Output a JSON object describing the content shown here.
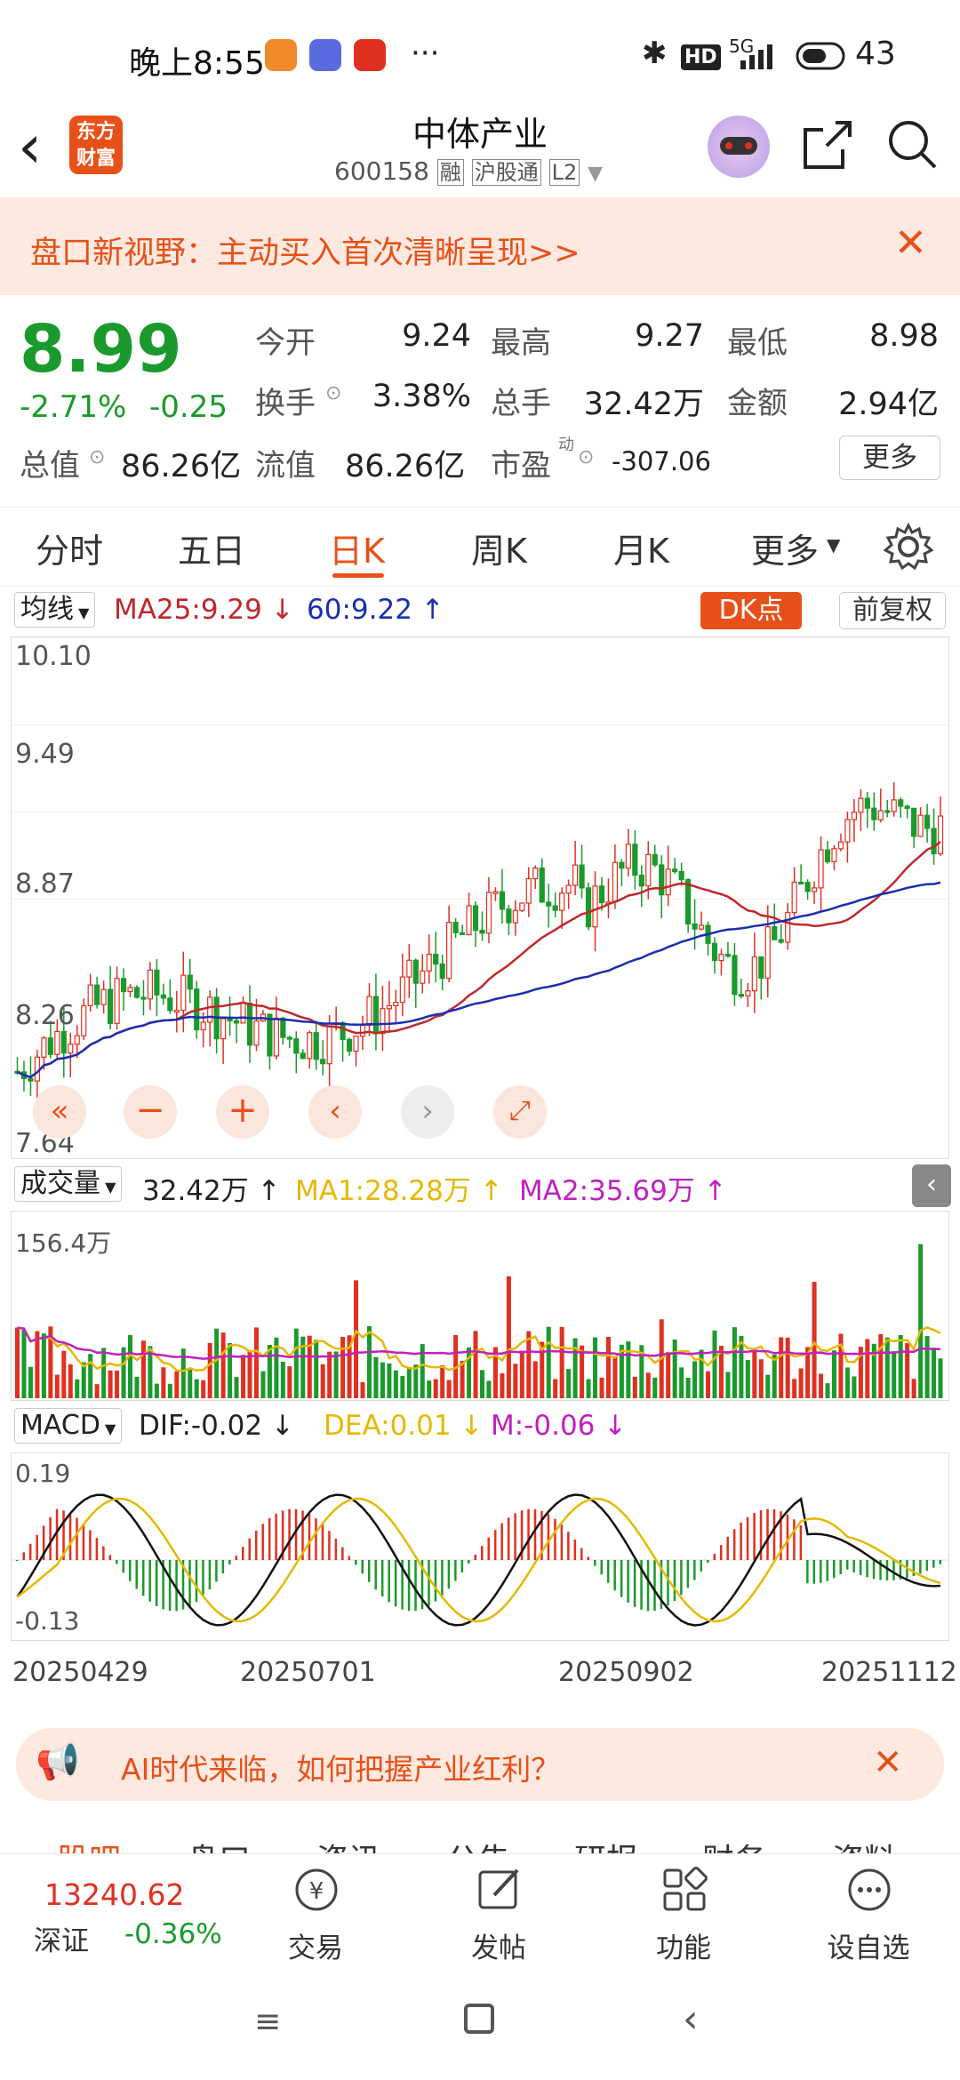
{
  "status": {
    "time": "晚上8:55",
    "more": "···",
    "network": "5G",
    "hd": "HD",
    "battery": "43"
  },
  "header": {
    "back_label": "‹",
    "brand_line1": "东方",
    "brand_line2": "财富",
    "title": "中体产业",
    "code": "600158",
    "tag1": "融",
    "tag2": "沪股通",
    "tag3": "L2"
  },
  "banner": {
    "text": "盘口新视野：主动买入首次清晰呈现>>"
  },
  "quote": {
    "price": "8.99",
    "change_pct": "-2.71%",
    "change": "-0.25",
    "open_label": "今开",
    "open": "9.24",
    "high_label": "最高",
    "high": "9.27",
    "low_label": "最低",
    "low": "8.98",
    "turnover_label": "换手",
    "turnover": "3.38%",
    "volume_label": "总手",
    "volume": "32.42万",
    "amount_label": "金额",
    "amount": "2.94亿",
    "mktcap_label": "总值",
    "mktcap": "86.26亿",
    "float_label": "流值",
    "float": "86.26亿",
    "pe_label": "市盈",
    "pe_sup": "动",
    "pe": "-307.06",
    "more_button": "更多"
  },
  "tabs": [
    "分时",
    "五日",
    "日K",
    "周K",
    "月K",
    "更多"
  ],
  "active_tab": "日K",
  "kline": {
    "ma_selector": "均线",
    "ma25": "MA25:9.29",
    "ma60": "60:9.22",
    "dk_button": "DK点",
    "adjust_button": "前复权",
    "y_ticks": [
      "10.10",
      "9.49",
      "8.87",
      "8.26",
      "7.64"
    ]
  },
  "volume_panel": {
    "selector": "成交量",
    "vol": "32.42万",
    "ma1": "MA1:28.28万",
    "ma2": "MA2:35.69万",
    "max_label": "156.4万"
  },
  "macd_panel": {
    "selector": "MACD",
    "dif": "DIF:-0.02",
    "dea": "DEA:0.01",
    "m": "M:-0.06",
    "top_label": "0.19",
    "bottom_label": "-0.13"
  },
  "dates": [
    "20250429",
    "20250701",
    "20250902",
    "20251112"
  ],
  "promo": {
    "text": "AI时代来临，如何把握产业红利？"
  },
  "subtabs": [
    "股吧",
    "盘口",
    "资讯",
    "公告",
    "研报",
    "财务",
    "资料"
  ],
  "bottom_nav": {
    "index_value": "13240.62",
    "index_name": "深证",
    "index_change": "-0.36%",
    "items": [
      "交易",
      "发帖",
      "功能",
      "设自选"
    ]
  },
  "colors": {
    "up": "#e03020",
    "down": "#1a9a2c",
    "accent": "#e8501a",
    "ma25": "#c0282a",
    "ma60": "#1a2eb0",
    "ma1": "#e6b800",
    "ma2": "#c020c0"
  }
}
